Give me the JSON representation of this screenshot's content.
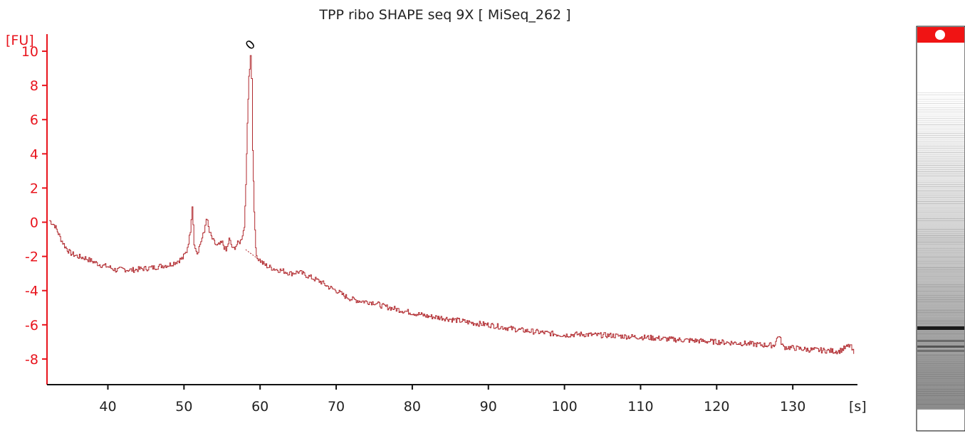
{
  "chart_data": {
    "type": "line",
    "title": "TPP ribo SHAPE seq 9X  [ MiSeq_262 ]",
    "xlabel": "[s]",
    "ylabel": "[FU]",
    "xlim": [
      32,
      138.5
    ],
    "ylim": [
      -9.5,
      11
    ],
    "xticks": [
      40,
      50,
      60,
      70,
      80,
      90,
      100,
      110,
      120,
      130
    ],
    "yticks": [
      -8,
      -6,
      -4,
      -2,
      0,
      2,
      4,
      6,
      8,
      10
    ],
    "grid": false,
    "series": [
      {
        "color": "#b0282d",
        "x": [
          32.3,
          33,
          33.8,
          34.3,
          35,
          36,
          37,
          38,
          39,
          40,
          41,
          42,
          43,
          44,
          45,
          46,
          47,
          48,
          49,
          49.8,
          50.3,
          50.8,
          51.05,
          51.3,
          51.7,
          52.2,
          52.6,
          52.9,
          53.3,
          53.8,
          54.3,
          55,
          55.5,
          55.9,
          56.4,
          56.9,
          57.4,
          57.9,
          58.1,
          58.3,
          58.5,
          58.7,
          58.85,
          59,
          59.2,
          59.4,
          59.6,
          59.9,
          60.3,
          61,
          62,
          63,
          64,
          65,
          66,
          67,
          68,
          69,
          70,
          71,
          72,
          73,
          74,
          75,
          76,
          77,
          78,
          79,
          80,
          82,
          84,
          86,
          88,
          90,
          92,
          94,
          96,
          98,
          100,
          102,
          104,
          106,
          108,
          110,
          112,
          114,
          116,
          118,
          120,
          122,
          124,
          126,
          127.5,
          128.1,
          128.7,
          130,
          132,
          134,
          136,
          137.5,
          138
        ],
        "y": [
          0.1,
          -0.2,
          -1,
          -1.4,
          -1.8,
          -2,
          -2.1,
          -2.3,
          -2.5,
          -2.6,
          -2.8,
          -2.75,
          -2.8,
          -2.75,
          -2.7,
          -2.65,
          -2.55,
          -2.5,
          -2.3,
          -2.1,
          -1.7,
          -0.6,
          0.9,
          -1.2,
          -1.8,
          -1.1,
          -0.6,
          0.3,
          -0.6,
          -1.1,
          -1.4,
          -1.2,
          -1.7,
          -1,
          -1.6,
          -1.3,
          -1.1,
          -0.3,
          2.2,
          5.8,
          8.6,
          9.6,
          8.4,
          4.2,
          0.6,
          -1.5,
          -2.1,
          -2.2,
          -2.4,
          -2.6,
          -2.75,
          -2.85,
          -3,
          -2.9,
          -3.1,
          -3.3,
          -3.5,
          -3.8,
          -4,
          -4.3,
          -4.5,
          -4.6,
          -4.65,
          -4.7,
          -4.9,
          -5,
          -5.1,
          -5.2,
          -5.3,
          -5.5,
          -5.6,
          -5.75,
          -5.9,
          -6,
          -6.15,
          -6.3,
          -6.4,
          -6.5,
          -6.6,
          -6.55,
          -6.6,
          -6.62,
          -6.68,
          -6.72,
          -6.78,
          -6.85,
          -6.9,
          -6.95,
          -7,
          -7.05,
          -7.1,
          -7.18,
          -7.2,
          -6.6,
          -7.3,
          -7.35,
          -7.45,
          -7.5,
          -7.55,
          -7.2,
          -7.7
        ]
      },
      {
        "color": "#b0282d",
        "x": [
          58.1,
          59.9
        ],
        "y": [
          -1.6,
          -2.2
        ]
      }
    ],
    "annotations": [
      {
        "text": "0",
        "x": 59.1,
        "y": 10.2
      }
    ]
  }
}
